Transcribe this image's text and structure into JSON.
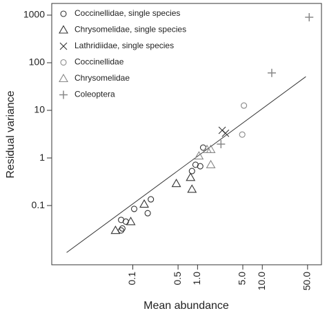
{
  "chart_data": {
    "type": "scatter",
    "xlabel": "Mean abundance",
    "ylabel": "Residual variance",
    "xlog": true,
    "ylog": true,
    "xlim": [
      0.0056,
      82
    ],
    "ylim": [
      0.0057,
      1760
    ],
    "xticks": [
      0.1,
      0.5,
      {
        "value": 1,
        "label": "1.0"
      },
      {
        "value": 5,
        "label": "5.0"
      },
      {
        "value": 10,
        "label": "10.0"
      },
      {
        "value": 50,
        "label": "50.0"
      }
    ],
    "yticks": [
      0.1,
      1,
      10,
      100,
      1000
    ],
    "legend": "upper left",
    "series": [
      {
        "name": "Coccinellidae, single species",
        "marker": "circle",
        "color": "#333333",
        "x": [
          0.066,
          0.066,
          0.069,
          0.078,
          0.105,
          0.17,
          0.19,
          0.82,
          0.93,
          1.1,
          1.22
        ],
        "y": [
          0.05,
          0.03,
          0.033,
          0.046,
          0.085,
          0.069,
          0.135,
          0.53,
          0.72,
          0.67,
          1.65
        ]
      },
      {
        "name": "Chrysomelidae, single species",
        "marker": "triangle",
        "color": "#333333",
        "x": [
          0.054,
          0.093,
          0.15,
          0.47,
          0.78,
          0.82
        ],
        "y": [
          0.03,
          0.046,
          0.107,
          0.29,
          0.39,
          0.22
        ]
      },
      {
        "name": "Lathridiidae, single species",
        "marker": "x",
        "color": "#333333",
        "x": [
          2.4,
          2.7
        ],
        "y": [
          3.8,
          3.3
        ]
      },
      {
        "name": "Coccinellidae",
        "marker": "circle",
        "color": "#888888",
        "x": [
          4.9,
          5.2
        ],
        "y": [
          3.1,
          12.6
        ]
      },
      {
        "name": "Chrysomelidae",
        "marker": "triangle",
        "color": "#888888",
        "x": [
          1.05,
          1.4,
          1.6,
          1.6
        ],
        "y": [
          1.1,
          1.5,
          0.72,
          1.5
        ]
      },
      {
        "name": "Coleoptera",
        "marker": "plus",
        "color": "#888888",
        "x": [
          2.3,
          14,
          53
        ],
        "y": [
          1.95,
          61,
          905
        ]
      }
    ],
    "fit_line": {
      "x": [
        0.0095,
        47
      ],
      "y": [
        0.0103,
        51
      ]
    }
  }
}
